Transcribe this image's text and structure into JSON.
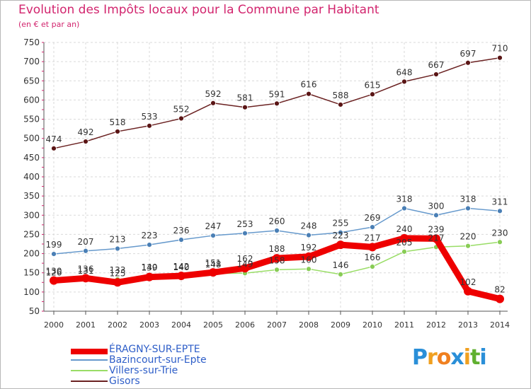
{
  "header": {
    "title": "Evolution des Impôts locaux pour la Commune par Habitant",
    "subtitle": "(en € et par an)"
  },
  "logo": {
    "text": "Proxiti",
    "letters": [
      {
        "ch": "P",
        "color": "#2a8fd8"
      },
      {
        "ch": "r",
        "color": "#f0a020"
      },
      {
        "ch": "o",
        "color": "#f08020"
      },
      {
        "ch": "x",
        "color": "#2a8fd8"
      },
      {
        "ch": "i",
        "color": "#f0a020"
      },
      {
        "ch": "t",
        "color": "#60b030"
      },
      {
        "ch": "i",
        "color": "#2a8fd8"
      }
    ]
  },
  "chart_data": {
    "type": "line",
    "title": "Evolution des Impôts locaux pour la Commune par Habitant",
    "subtitle": "(en € et par an)",
    "x": [
      "2000",
      "2001",
      "2002",
      "2003",
      "2004",
      "2005",
      "2006",
      "2007",
      "2008",
      "2009",
      "2010",
      "2011",
      "2012",
      "2013",
      "2014"
    ],
    "ylim": [
      50,
      750
    ],
    "yticks": [
      50,
      100,
      150,
      200,
      250,
      300,
      350,
      400,
      450,
      500,
      550,
      600,
      650,
      700,
      750
    ],
    "grid": true,
    "legend_position": "bottom-left",
    "series": [
      {
        "name": "ÉRAGNY-SUR-EPTE",
        "color": "#ee0000",
        "values": [
          130,
          136,
          125,
          139,
          142,
          151,
          162,
          188,
          192,
          223,
          217,
          240,
          239,
          102,
          82
        ],
        "labels": [
          "130",
          "136",
          "125",
          "139",
          "142",
          "151",
          "162",
          "188",
          "192",
          "223",
          "217",
          "240",
          "239",
          "102",
          "82"
        ]
      },
      {
        "name": "Bazincourt-sur-Epte",
        "color": "#6699cc",
        "values": [
          199,
          207,
          213,
          223,
          236,
          247,
          253,
          260,
          248,
          255,
          269,
          318,
          300,
          318,
          311
        ],
        "labels": [
          "199",
          "207",
          "213",
          "223",
          "236",
          "247",
          "253",
          "260",
          "248",
          "255",
          "269",
          "318",
          "300",
          "318",
          "311"
        ]
      },
      {
        "name": "Villers-sur-Trie",
        "color": "#99dd66",
        "values": [
          126,
          131,
          133,
          140,
          140,
          148,
          149,
          158,
          160,
          146,
          166,
          205,
          217,
          220,
          230
        ],
        "labels": [
          "126",
          "131",
          "133",
          "140",
          "140",
          "148",
          "149",
          "158",
          "160",
          "146",
          "166",
          "205",
          "217",
          "220",
          "230"
        ]
      },
      {
        "name": "Gisors",
        "color": "#6b2222",
        "values": [
          474,
          492,
          518,
          533,
          552,
          592,
          581,
          591,
          616,
          588,
          615,
          648,
          667,
          697,
          710
        ],
        "labels": [
          "474",
          "492",
          "518",
          "533",
          "552",
          "592",
          "581",
          "591",
          "616",
          "588",
          "615",
          "648",
          "667",
          "697",
          "710"
        ]
      }
    ]
  }
}
